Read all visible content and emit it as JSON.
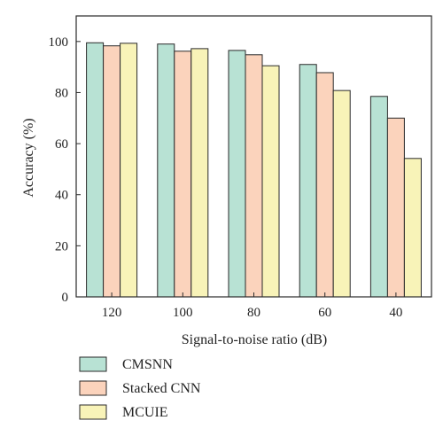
{
  "chart_data": {
    "type": "bar",
    "title": "",
    "xlabel": "Signal-to-noise ratio (dB)",
    "ylabel": "Accuracy (%)",
    "ylim": [
      0,
      110
    ],
    "yticks": [
      0,
      20,
      40,
      60,
      80,
      100
    ],
    "categories": [
      "120",
      "100",
      "80",
      "60",
      "40"
    ],
    "series": [
      {
        "name": "CMSNN",
        "color": "#b8e2d4",
        "values": [
          99.5,
          99.0,
          96.5,
          91.0,
          78.5
        ]
      },
      {
        "name": "Stacked CNN",
        "color": "#fbd3bc",
        "values": [
          98.3,
          96.2,
          94.8,
          87.8,
          70.0
        ]
      },
      {
        "name": "MCUIE",
        "color": "#f8f3b8",
        "values": [
          99.3,
          97.2,
          90.5,
          80.8,
          54.2
        ]
      }
    ],
    "grid": false,
    "legend_position": "bottom-left"
  }
}
